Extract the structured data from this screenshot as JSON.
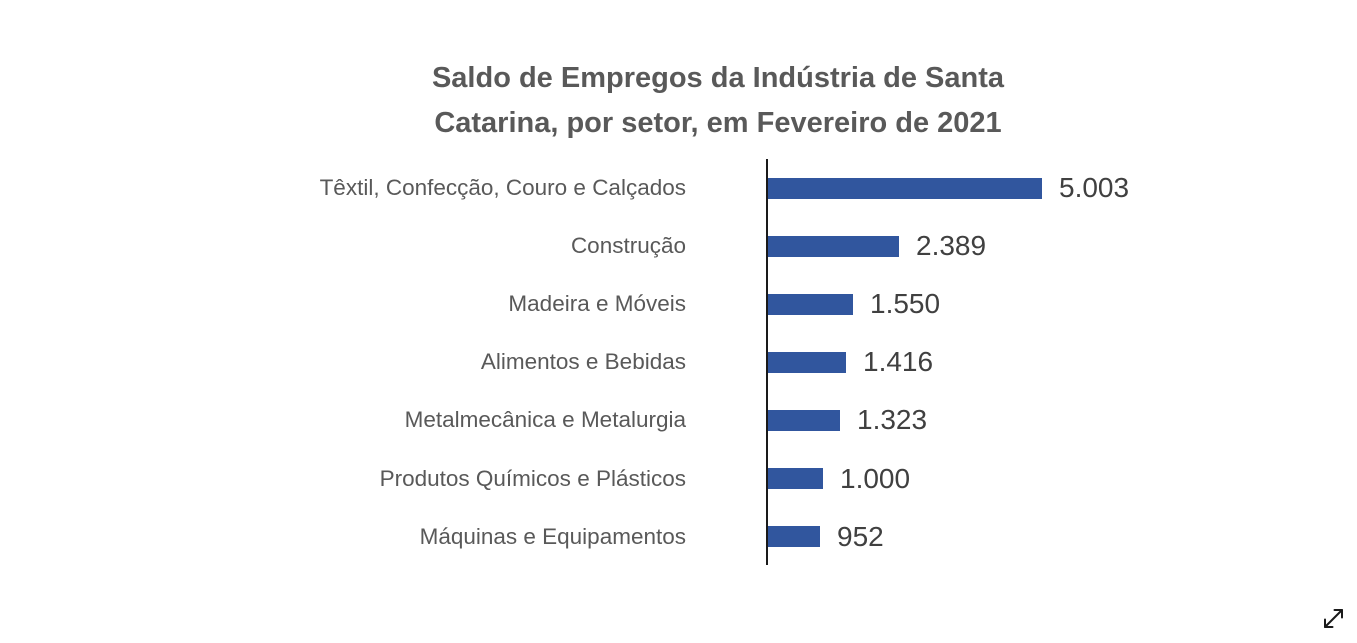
{
  "chart_data": {
    "type": "bar",
    "orientation": "horizontal",
    "title": "Saldo de Empregos da Indústria de Santa Catarina, por setor, em Fevereiro de 2021",
    "categories": [
      "Têxtil, Confecção, Couro e Calçados",
      "Construção",
      "Madeira e Móveis",
      "Alimentos e Bebidas",
      "Metalmecânica e Metalurgia",
      "Produtos Químicos e Plásticos",
      "Máquinas e Equipamentos"
    ],
    "values": [
      5003,
      2389,
      1550,
      1416,
      1323,
      1000,
      952
    ],
    "value_labels": [
      "5.003",
      "2.389",
      "1.550",
      "1.416",
      "1.323",
      "1.000",
      "952"
    ],
    "xlim": [
      0,
      5003
    ],
    "grid": false,
    "legend": "none",
    "data_labels_position": "outside-end",
    "colors": {
      "bar": "#31569E",
      "axis": "#1a1a1a",
      "category_label": "#595959",
      "value_label": "#404040",
      "title": "#595959"
    }
  },
  "icons": {
    "expand": "diagonal-resize-double-arrow"
  }
}
